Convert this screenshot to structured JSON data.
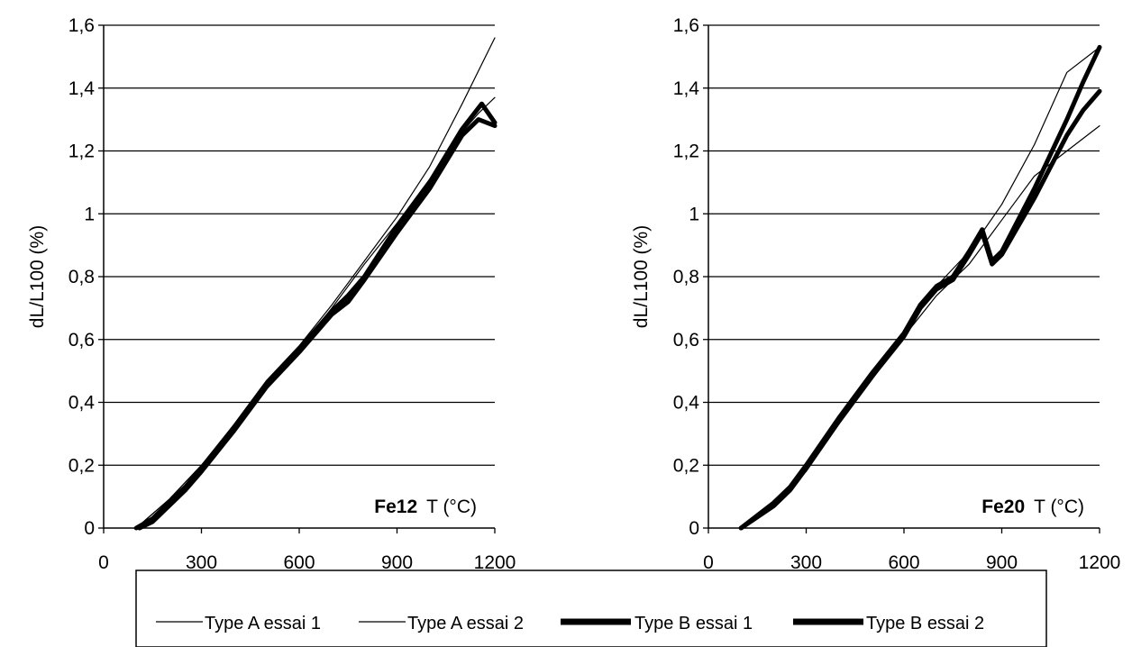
{
  "chart_data": [
    {
      "type": "line",
      "title": "",
      "annotation_bold": "Fe12",
      "annotation_text": "T (°C)",
      "xlabel": "",
      "ylabel": "dL/L100 (%)",
      "xlim": [
        0,
        1200
      ],
      "ylim": [
        0,
        1.6
      ],
      "x_ticks": [
        0,
        300,
        600,
        900,
        1200
      ],
      "x_tick_labels": [
        "0",
        "300",
        "600",
        "900",
        "1200"
      ],
      "y_ticks": [
        0,
        0.2,
        0.4,
        0.6,
        0.8,
        1,
        1.2,
        1.4,
        1.6
      ],
      "y_tick_labels": [
        "0",
        "0,2",
        "0,4",
        "0,6",
        "0,8",
        "1",
        "1,2",
        "1,4",
        "1,6"
      ],
      "grid": "horizontal",
      "series": [
        {
          "name": "Type A essai 1",
          "x": [
            100,
            200,
            300,
            400,
            500,
            600,
            700,
            800,
            900,
            1000,
            1100,
            1200
          ],
          "y": [
            0,
            0.09,
            0.2,
            0.33,
            0.47,
            0.58,
            0.71,
            0.85,
            0.99,
            1.15,
            1.35,
            1.56
          ]
        },
        {
          "name": "Type A essai 2",
          "x": [
            100,
            200,
            300,
            400,
            500,
            600,
            700,
            800,
            900,
            1000,
            1100,
            1150,
            1200
          ],
          "y": [
            0,
            0.09,
            0.2,
            0.32,
            0.46,
            0.57,
            0.7,
            0.84,
            0.97,
            1.11,
            1.26,
            1.32,
            1.37
          ]
        },
        {
          "name": "Type B essai 1",
          "x": [
            100,
            150,
            200,
            250,
            300,
            400,
            500,
            600,
            700,
            750,
            800,
            900,
            1000,
            1100,
            1160,
            1200
          ],
          "y": [
            0,
            0.03,
            0.08,
            0.13,
            0.19,
            0.32,
            0.46,
            0.57,
            0.69,
            0.74,
            0.8,
            0.96,
            1.1,
            1.27,
            1.35,
            1.29
          ]
        },
        {
          "name": "Type B essai 2",
          "x": [
            110,
            150,
            200,
            250,
            300,
            400,
            500,
            600,
            700,
            750,
            800,
            900,
            1000,
            1100,
            1150,
            1200
          ],
          "y": [
            0,
            0.02,
            0.07,
            0.12,
            0.18,
            0.31,
            0.45,
            0.56,
            0.68,
            0.72,
            0.79,
            0.94,
            1.08,
            1.25,
            1.3,
            1.28
          ]
        }
      ]
    },
    {
      "type": "line",
      "title": "",
      "annotation_bold": "Fe20",
      "annotation_text": "T (°C)",
      "xlabel": "",
      "ylabel": "dL/L100 (%)",
      "xlim": [
        0,
        1200
      ],
      "ylim": [
        0,
        1.6
      ],
      "x_ticks": [
        0,
        300,
        600,
        900,
        1200
      ],
      "x_tick_labels": [
        "0",
        "300",
        "600",
        "900",
        "1200"
      ],
      "y_ticks": [
        0,
        0.2,
        0.4,
        0.6,
        0.8,
        1,
        1.2,
        1.4,
        1.6
      ],
      "y_tick_labels": [
        "0",
        "0,2",
        "0,4",
        "0,6",
        "0,8",
        "1",
        "1,2",
        "1,4",
        "1,6"
      ],
      "grid": "horizontal",
      "series": [
        {
          "name": "Type A essai 1",
          "x": [
            100,
            200,
            300,
            400,
            500,
            600,
            700,
            800,
            900,
            1000,
            1100,
            1200
          ],
          "y": [
            0,
            0.08,
            0.19,
            0.34,
            0.48,
            0.62,
            0.77,
            0.88,
            1.03,
            1.22,
            1.45,
            1.53
          ]
        },
        {
          "name": "Type A essai 2",
          "x": [
            100,
            200,
            300,
            400,
            500,
            600,
            700,
            800,
            900,
            1000,
            1100,
            1200
          ],
          "y": [
            0,
            0.08,
            0.18,
            0.33,
            0.47,
            0.61,
            0.74,
            0.84,
            0.98,
            1.12,
            1.2,
            1.28
          ]
        },
        {
          "name": "Type B essai 1",
          "x": [
            100,
            200,
            250,
            300,
            400,
            500,
            600,
            650,
            700,
            750,
            800,
            840,
            870,
            900,
            1000,
            1100,
            1150,
            1200
          ],
          "y": [
            0,
            0.08,
            0.13,
            0.2,
            0.35,
            0.49,
            0.62,
            0.71,
            0.77,
            0.8,
            0.88,
            0.95,
            0.85,
            0.88,
            1.08,
            1.3,
            1.42,
            1.53
          ]
        },
        {
          "name": "Type B essai 2",
          "x": [
            100,
            200,
            250,
            300,
            400,
            500,
            600,
            650,
            700,
            750,
            800,
            840,
            870,
            900,
            1000,
            1100,
            1150,
            1200
          ],
          "y": [
            0,
            0.07,
            0.12,
            0.19,
            0.34,
            0.48,
            0.61,
            0.7,
            0.76,
            0.79,
            0.87,
            0.94,
            0.84,
            0.87,
            1.05,
            1.25,
            1.33,
            1.39
          ]
        }
      ]
    }
  ],
  "legend": {
    "placement": "bottom",
    "entries": [
      {
        "label": "Type A essai 1",
        "style": "thin"
      },
      {
        "label": "Type A essai 2",
        "style": "thin"
      },
      {
        "label": "Type B essai 1",
        "style": "thick"
      },
      {
        "label": "Type B essai 2",
        "style": "thick"
      }
    ]
  },
  "colors": {
    "lines": "#000000",
    "grid": "#000000",
    "background": "#ffffff"
  }
}
